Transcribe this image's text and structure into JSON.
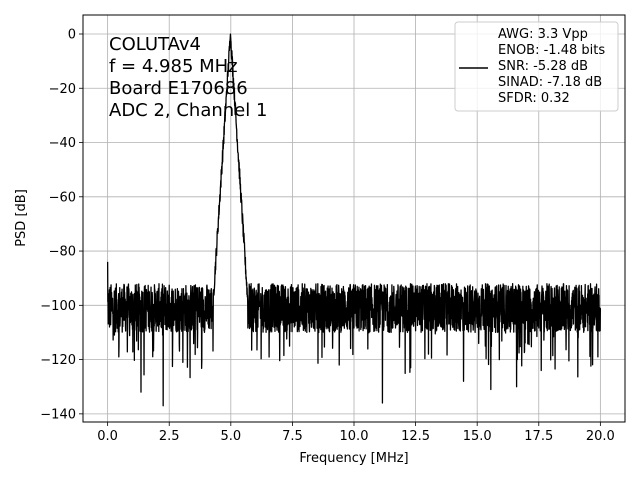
{
  "chart_data": {
    "type": "line",
    "xlabel": "Frequency [MHz]",
    "ylabel": "PSD [dB]",
    "xlim": [
      -1.0,
      21.0
    ],
    "ylim": [
      -143,
      7
    ],
    "xticks": [
      0.0,
      2.5,
      5.0,
      7.5,
      10.0,
      12.5,
      15.0,
      17.5,
      20.0
    ],
    "xtick_labels": [
      "0.0",
      "2.5",
      "5.0",
      "7.5",
      "10.0",
      "12.5",
      "15.0",
      "17.5",
      "20.0"
    ],
    "yticks": [
      0,
      -20,
      -40,
      -60,
      -80,
      -100,
      -120,
      -140
    ],
    "ytick_labels": [
      "0",
      "−20",
      "−40",
      "−60",
      "−80",
      "−100",
      "−120",
      "−140"
    ],
    "grid": true,
    "legend_position": "top-right",
    "annotation_lines": [
      "COLUTAv4",
      "f = 4.985 MHz",
      "Board E170686",
      "ADC 2, Channel 1"
    ],
    "legend_lines": [
      "AWG: 3.3 Vpp",
      "ENOB: -1.48 bits",
      "SNR: -5.28 dB",
      "SINAD: -7.18 dB",
      "SFDR: 0.32"
    ],
    "series": [
      {
        "color": "#000000",
        "signal_frequency_mhz": 4.985,
        "peak_db": 0,
        "noise_floor_db_range": [
          -112,
          -90
        ],
        "dc_spike_db": -84,
        "deep_nulls": [
          {
            "x": 1.35,
            "y": -132
          },
          {
            "x": 2.25,
            "y": -137
          },
          {
            "x": 11.15,
            "y": -136
          },
          {
            "x": 14.45,
            "y": -128
          },
          {
            "x": 15.55,
            "y": -131
          },
          {
            "x": 16.6,
            "y": -130
          },
          {
            "x": 3.05,
            "y": -121
          },
          {
            "x": 0.45,
            "y": -119
          },
          {
            "x": 17.6,
            "y": -124
          },
          {
            "x": 12.3,
            "y": -123
          },
          {
            "x": 19.9,
            "y": -119
          },
          {
            "x": 9.4,
            "y": -122
          }
        ],
        "points": []
      }
    ]
  }
}
